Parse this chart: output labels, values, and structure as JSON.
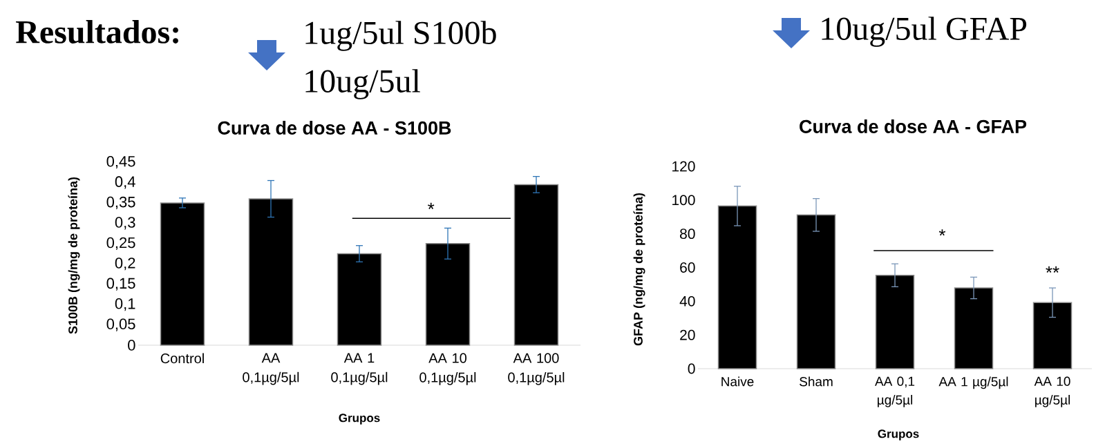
{
  "chart_data": [
    {
      "type": "bar",
      "title": "Curva de dose AA - S100B",
      "xlabel": "Grupos",
      "ylabel": "S100B (ng/mg de proteína)",
      "categories": [
        "Control",
        "AA 0,1µg/5µl",
        "AA 1 0,1µg/5µl",
        "AA 10 0,1µg/5µl",
        "AA 100 0,1µg/5µl"
      ],
      "values": [
        0.35,
        0.36,
        0.225,
        0.25,
        0.395
      ],
      "errors": [
        0.012,
        0.045,
        0.02,
        0.038,
        0.02
      ],
      "color": "#000000",
      "ylim": [
        0,
        0.45
      ],
      "yticks": [
        {
          "value": 0,
          "label": "0"
        },
        {
          "value": 0.05,
          "label": "0,05"
        },
        {
          "value": 0.1,
          "label": "0,1"
        },
        {
          "value": 0.15,
          "label": "0,15"
        },
        {
          "value": 0.2,
          "label": "0,2"
        },
        {
          "value": 0.25,
          "label": "0,25"
        },
        {
          "value": 0.3,
          "label": "0,3"
        },
        {
          "value": 0.35,
          "label": "0,35"
        },
        {
          "value": 0.4,
          "label": "0,4"
        },
        {
          "value": 0.45,
          "label": "0,45"
        }
      ],
      "annotations": [
        "Resultados:",
        "1ug/5ul S100b",
        "10ug/5ul",
        "*"
      ]
    },
    {
      "type": "bar",
      "title": "Curva de dose AA - GFAP",
      "xlabel": "Grupos",
      "ylabel": "GFAP (ng/mg de proteína)",
      "categories": [
        "Naive",
        "Sham",
        "AA 0,1 µg/5µl",
        "AA 1 µg/5µl",
        "AA 10 µg/5µl"
      ],
      "values": [
        96.5,
        91.2,
        55.4,
        47.9,
        39.2
      ],
      "errors": [
        11.7,
        9.7,
        6.8,
        6.4,
        8.7
      ],
      "color": "#000000",
      "ylim": [
        0,
        120
      ],
      "yticks": [
        0,
        20,
        40,
        60,
        80,
        100,
        120
      ],
      "annotations": [
        "10ug/5ul GFAP",
        "*",
        "**"
      ]
    }
  ]
}
